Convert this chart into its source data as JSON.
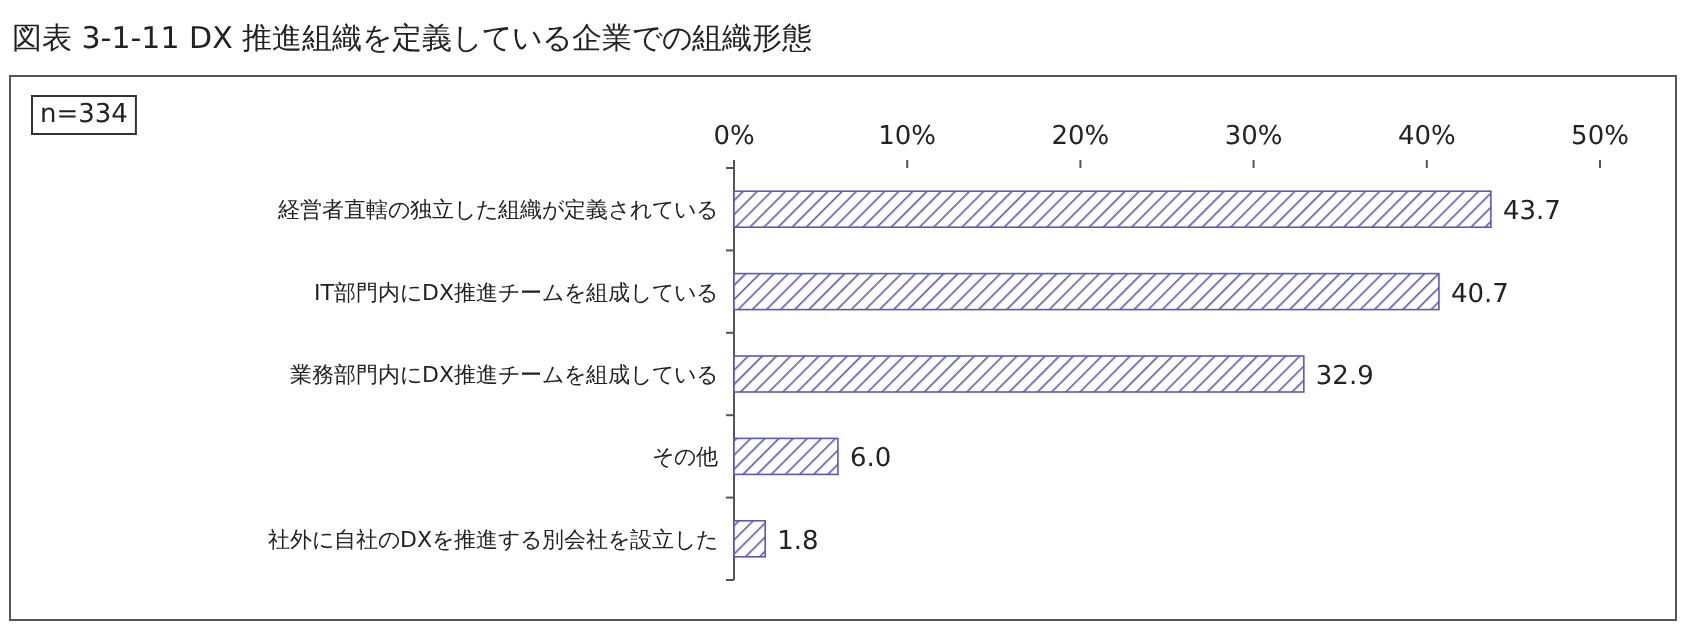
{
  "chart_data": {
    "type": "bar",
    "orientation": "horizontal",
    "title": "図表 3-1-11  DX 推進組織を定義している企業での組織形態",
    "annotations": [
      "n=334"
    ],
    "categories": [
      "経営者直轄の独立した組織が定義されている",
      "IT部門内にDX推進チームを組成している",
      "業務部門内にDX推進チームを組成している",
      "その他",
      "社外に自社のDXを推進する別会社を設立した"
    ],
    "values": [
      43.7,
      40.7,
      32.9,
      6.0,
      1.8
    ],
    "value_labels": [
      "43.7",
      "40.7",
      "32.9",
      "6.0",
      "1.8"
    ],
    "color": "#5a5ab4",
    "xlim": [
      0,
      50
    ],
    "xticks": [
      {
        "value": 0,
        "label": "0%"
      },
      {
        "value": 10,
        "label": "10%"
      },
      {
        "value": 20,
        "label": "20%"
      },
      {
        "value": 30,
        "label": "30%"
      },
      {
        "value": 40,
        "label": "40%"
      },
      {
        "value": 50,
        "label": "50%"
      }
    ],
    "grid": false
  }
}
